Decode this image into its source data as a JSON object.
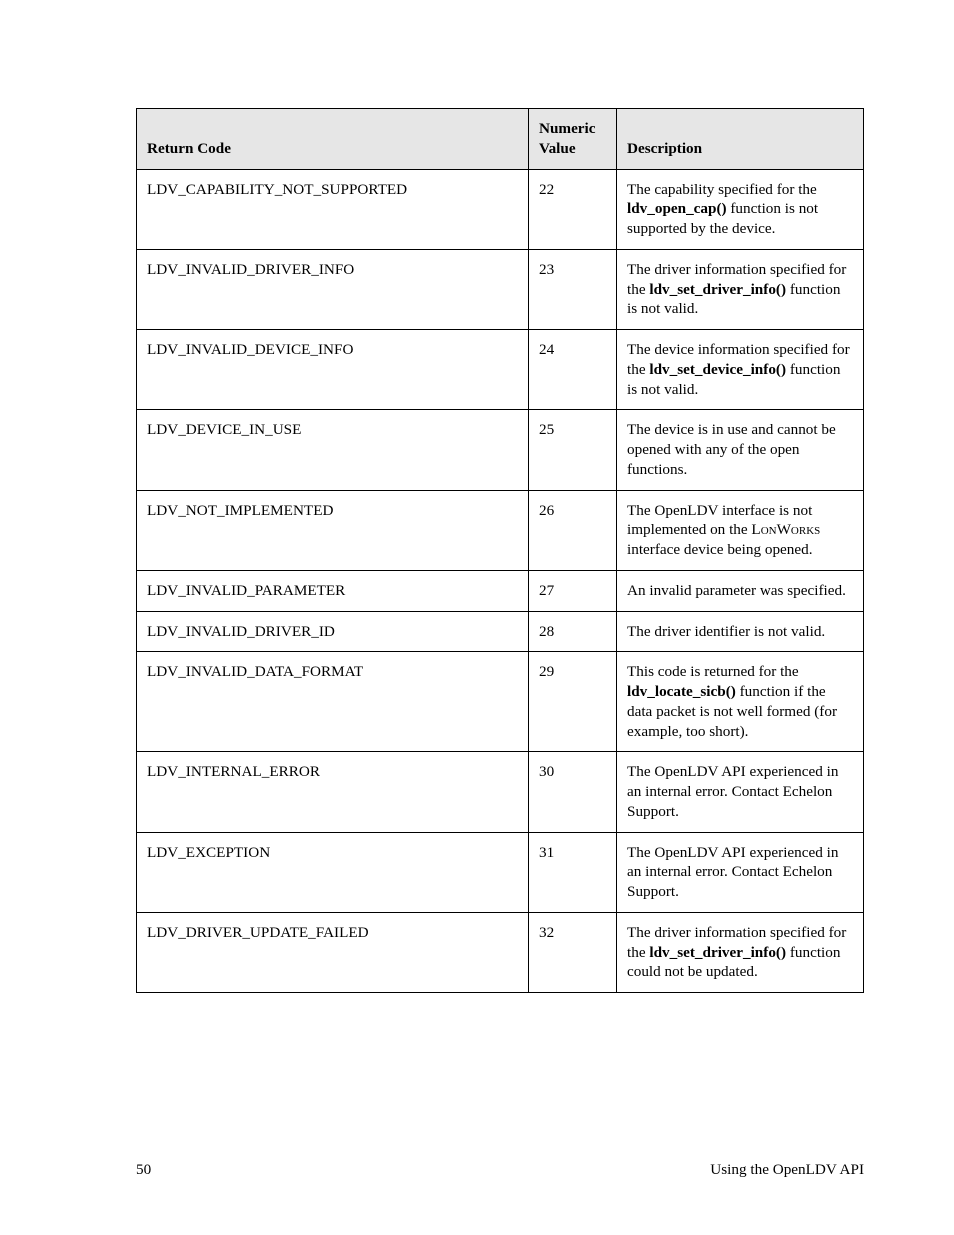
{
  "table": {
    "header": {
      "code": "Return Code",
      "num_l1": "Numeric",
      "num_l2": "Value",
      "desc": "Description"
    },
    "header_bg": "#e6e6e6",
    "border_color": "#000000",
    "rows": [
      {
        "code": "LDV_CAPABILITY_NOT_SUPPORTED",
        "num": "22",
        "desc_parts": [
          {
            "t": "The capability specified for the "
          },
          {
            "t": "ldv_open_cap()",
            "b": true
          },
          {
            "t": " function is not supported by the device."
          }
        ]
      },
      {
        "code": "LDV_INVALID_DRIVER_INFO",
        "num": "23",
        "desc_parts": [
          {
            "t": "The driver information specified for the "
          },
          {
            "t": "ldv_set_driver_info()",
            "b": true
          },
          {
            "t": " function is not valid."
          }
        ]
      },
      {
        "code": "LDV_INVALID_DEVICE_INFO",
        "num": "24",
        "desc_parts": [
          {
            "t": "The device information specified for the "
          },
          {
            "t": "ldv_set_device_info()",
            "b": true
          },
          {
            "t": " function is not valid."
          }
        ]
      },
      {
        "code": "LDV_DEVICE_IN_USE",
        "num": "25",
        "desc_parts": [
          {
            "t": "The device is in use and cannot be opened with any of the open functions."
          }
        ]
      },
      {
        "code": "LDV_NOT_IMPLEMENTED",
        "num": "26",
        "desc_parts": [
          {
            "t": "The OpenLDV interface is not implemented on the "
          },
          {
            "t": "LonWorks",
            "sc": true
          },
          {
            "t": " interface device being opened."
          }
        ]
      },
      {
        "code": "LDV_INVALID_PARAMETER",
        "num": "27",
        "desc_parts": [
          {
            "t": "An invalid parameter was specified."
          }
        ]
      },
      {
        "code": "LDV_INVALID_DRIVER_ID",
        "num": "28",
        "desc_parts": [
          {
            "t": "The driver identifier is not valid."
          }
        ]
      },
      {
        "code": "LDV_INVALID_DATA_FORMAT",
        "num": "29",
        "desc_parts": [
          {
            "t": "This code is returned for the "
          },
          {
            "t": "ldv_locate_sicb()",
            "b": true
          },
          {
            "t": " function if the data packet is not well formed (for example, too short)."
          }
        ]
      },
      {
        "code": "LDV_INTERNAL_ERROR",
        "num": "30",
        "desc_parts": [
          {
            "t": "The OpenLDV API experienced in an internal error.  Contact Echelon Support."
          }
        ]
      },
      {
        "code": "LDV_EXCEPTION",
        "num": "31",
        "desc_parts": [
          {
            "t": "The OpenLDV API experienced in an internal error.  Contact Echelon Support."
          }
        ]
      },
      {
        "code": "LDV_DRIVER_UPDATE_FAILED",
        "num": "32",
        "desc_parts": [
          {
            "t": "The driver information specified for the "
          },
          {
            "t": "ldv_set_driver_info()",
            "b": true
          },
          {
            "t": " function could not be updated."
          }
        ]
      }
    ]
  },
  "footer": {
    "page_num": "50",
    "title": "Using the OpenLDV API"
  }
}
